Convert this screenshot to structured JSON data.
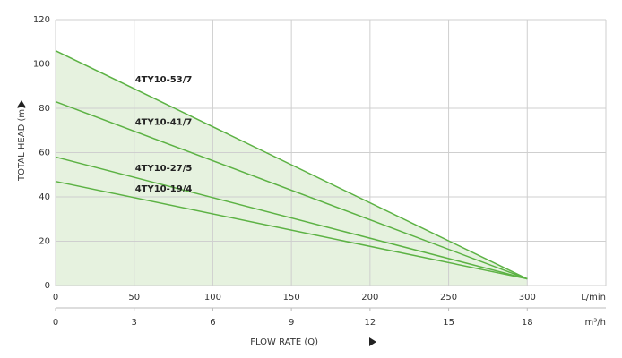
{
  "chart_data": {
    "type": "line",
    "x": [
      0,
      300
    ],
    "series": [
      {
        "name": "4TY10-53/7",
        "color": "#5cb244",
        "values": [
          106,
          3
        ]
      },
      {
        "name": "4TY10-41/7",
        "color": "#5cb244",
        "values": [
          83,
          3
        ]
      },
      {
        "name": "4TY10-27/5",
        "color": "#5cb244",
        "values": [
          58,
          3
        ]
      },
      {
        "name": "4TY10-19/4",
        "color": "#5cb244",
        "values": [
          47,
          3
        ]
      }
    ],
    "area_color": "#e6f2df",
    "xlim": [
      0,
      350
    ],
    "xticks": [
      0,
      50,
      100,
      150,
      200,
      250,
      300
    ],
    "x_unit": "L/min",
    "x2lim": [
      0,
      21
    ],
    "x2ticks": [
      0,
      3,
      6,
      9,
      12,
      15,
      18
    ],
    "x2_unit": "m³/h",
    "ylim": [
      0,
      120
    ],
    "yticks": [
      0,
      20,
      40,
      60,
      80,
      100,
      120
    ],
    "x_label": "FLOW RATE (Q)",
    "y_label": "TOTAL HEAD (m)",
    "grid": true
  }
}
